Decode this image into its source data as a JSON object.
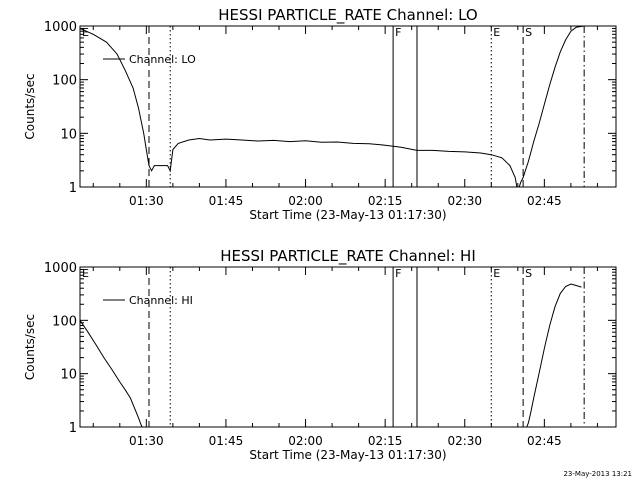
{
  "footer_timestamp": "23-May-2013 13:21",
  "chart_data": [
    {
      "type": "line",
      "title": "HESSI PARTICLE_RATE Channel: LO",
      "xlabel": "Start Time (23-May-13 01:17:30)",
      "ylabel": "Counts/sec",
      "yscale": "log",
      "ylim": [
        1,
        1000
      ],
      "xlim": [
        "01:17:30",
        "02:58:30"
      ],
      "x_ticks": [
        "01:30",
        "01:45",
        "02:00",
        "02:15",
        "02:30",
        "02:45"
      ],
      "y_ticks": [
        "1",
        "10",
        "100",
        "1000"
      ],
      "legend": "Channel: LO",
      "legend_position": "top-left",
      "markers": [
        {
          "label": "E",
          "time": "01:17:30",
          "style": "none"
        },
        {
          "label": "",
          "time": "01:30:30",
          "style": "dashed"
        },
        {
          "label": "",
          "time": "01:34:30",
          "style": "dotted"
        },
        {
          "label": "F",
          "time": "02:16:30",
          "style": "solid"
        },
        {
          "label": "",
          "time": "02:21:00",
          "style": "solid"
        },
        {
          "label": "E",
          "time": "02:35:00",
          "style": "dotted"
        },
        {
          "label": "S",
          "time": "02:41:00",
          "style": "dashed"
        },
        {
          "label": "",
          "time": "02:52:30",
          "style": "dashdot"
        }
      ],
      "series": [
        {
          "name": "Channel: LO",
          "x": [
            "01:17:30",
            "01:20:00",
            "01:22:30",
            "01:24:30",
            "01:26:00",
            "01:27:30",
            "01:28:30",
            "01:29:30",
            "01:30:00",
            "01:30:30",
            "01:31:00",
            "01:31:30",
            "01:33:00",
            "01:34:00",
            "01:34:30",
            "01:35:00",
            "01:36:00",
            "01:38:00",
            "01:40:00",
            "01:42:00",
            "01:45:00",
            "01:48:00",
            "01:51:00",
            "01:54:00",
            "01:57:00",
            "02:00:00",
            "02:03:00",
            "02:06:00",
            "02:09:00",
            "02:12:00",
            "02:15:00",
            "02:18:00",
            "02:21:00",
            "02:24:00",
            "02:27:00",
            "02:30:00",
            "02:33:00",
            "02:35:00",
            "02:37:00",
            "02:38:30",
            "02:39:30",
            "02:40:00",
            "02:40:30",
            "02:41:00",
            "02:42:00",
            "02:43:00",
            "02:44:00",
            "02:45:00",
            "02:46:00",
            "02:47:00",
            "02:48:00",
            "02:49:00",
            "02:50:00",
            "02:51:00",
            "02:52:30"
          ],
          "y": [
            900,
            700,
            500,
            300,
            150,
            70,
            30,
            10,
            5,
            2.5,
            2,
            2.5,
            2.5,
            2.5,
            2,
            5,
            6.5,
            7.5,
            8,
            7.5,
            7.8,
            7.5,
            7.2,
            7.4,
            7,
            7.3,
            6.8,
            6.9,
            6.5,
            6.4,
            6,
            5.5,
            4.8,
            4.8,
            4.6,
            4.5,
            4.3,
            4,
            3.5,
            2.5,
            1.5,
            0.8,
            1.2,
            1.5,
            3,
            7,
            15,
            35,
            80,
            170,
            330,
            550,
            800,
            950,
            1000
          ]
        }
      ]
    },
    {
      "type": "line",
      "title": "HESSI PARTICLE_RATE Channel: HI",
      "xlabel": "Start Time (23-May-13 01:17:30)",
      "ylabel": "Counts/sec",
      "yscale": "log",
      "ylim": [
        1,
        1000
      ],
      "xlim": [
        "01:17:30",
        "02:58:30"
      ],
      "x_ticks": [
        "01:30",
        "01:45",
        "02:00",
        "02:15",
        "02:30",
        "02:45"
      ],
      "y_ticks": [
        "1",
        "10",
        "100",
        "1000"
      ],
      "legend": "Channel: HI",
      "legend_position": "top-left",
      "markers": [
        {
          "label": "E",
          "time": "01:17:30",
          "style": "none"
        },
        {
          "label": "",
          "time": "01:30:30",
          "style": "dashed"
        },
        {
          "label": "",
          "time": "01:34:30",
          "style": "dotted"
        },
        {
          "label": "F",
          "time": "02:16:30",
          "style": "solid"
        },
        {
          "label": "",
          "time": "02:21:00",
          "style": "solid"
        },
        {
          "label": "E",
          "time": "02:35:00",
          "style": "dotted"
        },
        {
          "label": "S",
          "time": "02:41:00",
          "style": "dashed"
        },
        {
          "label": "",
          "time": "02:52:30",
          "style": "dashdot"
        }
      ],
      "series": [
        {
          "name": "Channel: HI",
          "x": [
            "01:17:30",
            "01:19:00",
            "01:20:30",
            "01:22:00",
            "01:23:30",
            "01:25:00",
            "01:26:00",
            "01:27:00",
            "01:28:00",
            "01:28:30",
            "01:29:00",
            "01:29:30"
          ],
          "y": [
            100,
            60,
            35,
            20,
            12,
            7,
            5,
            3.5,
            2,
            1.5,
            1.1,
            0.9
          ]
        },
        {
          "name": "Channel: HI",
          "x": [
            "02:41:30",
            "02:42:00",
            "02:42:30",
            "02:43:00",
            "02:44:00",
            "02:45:00",
            "02:46:00",
            "02:47:00",
            "02:48:00",
            "02:49:00",
            "02:50:00",
            "02:51:00",
            "02:52:00"
          ],
          "y": [
            0.9,
            1.2,
            2,
            3.5,
            10,
            30,
            80,
            180,
            320,
            430,
            480,
            450,
            420
          ]
        }
      ]
    }
  ]
}
